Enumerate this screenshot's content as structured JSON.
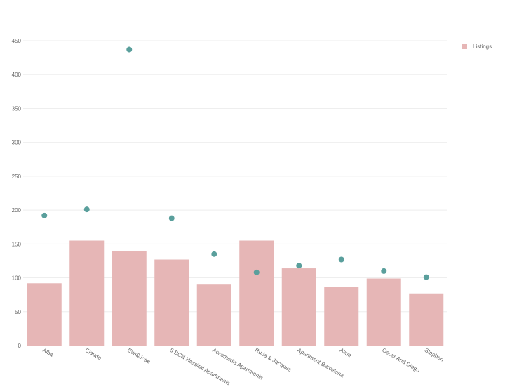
{
  "chart_data": {
    "type": "bar",
    "title": "",
    "xlabel": "",
    "ylabel": "",
    "categories": [
      "Alba",
      "Claude",
      "Eva&Jose",
      "5 BCN Hospital Apartments",
      "Accomodis Apartments",
      "Ruda & Jacques",
      "Apartment Barcelona",
      "Aline",
      "Oscar And Diego",
      "Stephen"
    ],
    "series": [
      {
        "name": "Listings",
        "kind": "bar",
        "color": "#e6b6b6",
        "values": [
          92,
          155,
          140,
          127,
          90,
          155,
          114,
          87,
          99,
          77
        ]
      },
      {
        "kind": "scatter",
        "color": "#5a9f9c",
        "values": [
          192,
          201,
          437,
          188,
          135,
          108,
          118,
          127,
          110,
          101
        ]
      }
    ],
    "ylim": [
      0,
      450
    ],
    "yticks": [
      0,
      50,
      100,
      150,
      200,
      250,
      300,
      350,
      400,
      450
    ],
    "grid": true,
    "legend": {
      "position": "top-right",
      "entries": [
        "Listings"
      ]
    }
  }
}
